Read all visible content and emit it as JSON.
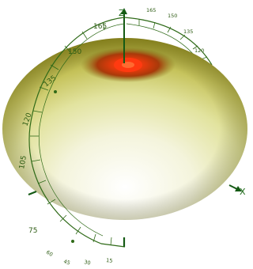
{
  "figure": {
    "axes": {
      "z_label": "Z",
      "x_label": "X"
    },
    "meridian_scale_labels": [
      "165",
      "150",
      "135",
      "120",
      "105",
      "75",
      "60",
      "45",
      "30",
      "15"
    ],
    "back_scale_labels": [
      "165",
      "150",
      "135",
      "120"
    ],
    "colors": {
      "body_light": "#ffffff",
      "body_mid": "#e8e8b0",
      "body_dark": "#8c8a16",
      "hole_glow": "#ff3a10",
      "hole_ring": "#b03008",
      "scale_line": "#2f6a18",
      "axis_line": "#145a14"
    }
  }
}
